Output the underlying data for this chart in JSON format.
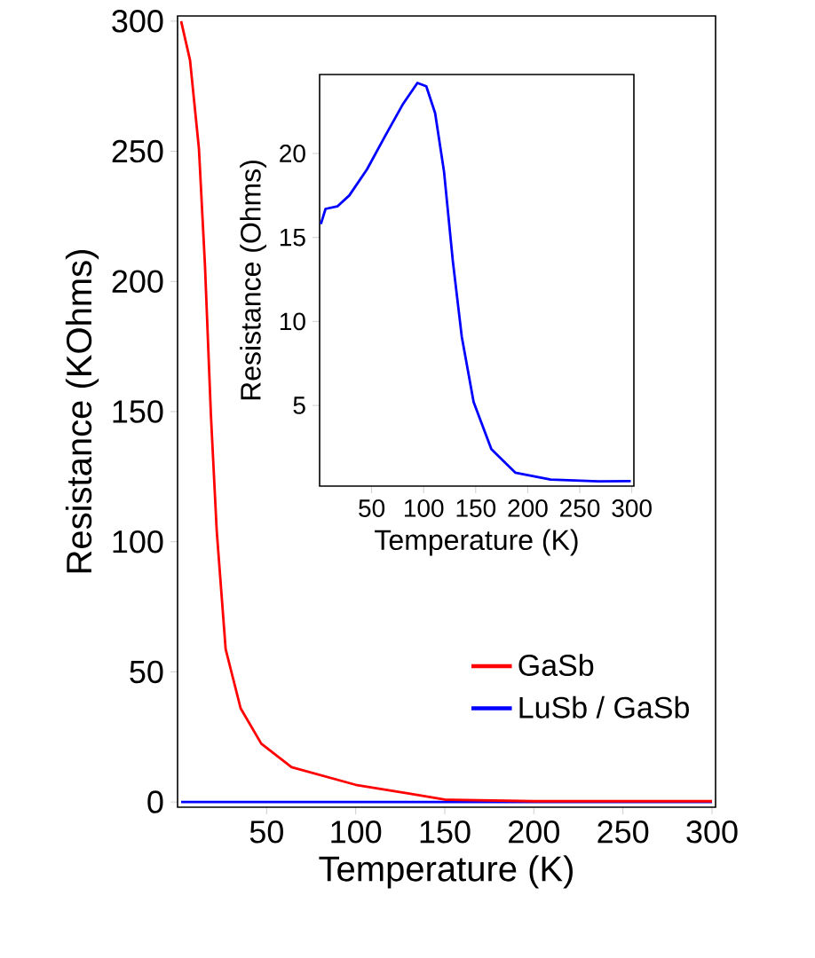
{
  "chart_data": [
    {
      "type": "line",
      "xlabel": "Temperature (K)",
      "ylabel": "Resistance (KOhms)",
      "xlim": [
        0,
        302
      ],
      "ylim": [
        -2,
        302
      ],
      "xticks": [
        50,
        100,
        150,
        200,
        250,
        300
      ],
      "yticks": [
        0,
        50,
        100,
        150,
        200,
        250,
        300
      ],
      "legend": "bottom right",
      "series": [
        {
          "name": "GaSb",
          "color": "#ff0000",
          "x": [
            2,
            7,
            12,
            15.4,
            18.7,
            22,
            27,
            35.4,
            47,
            64,
            100,
            130,
            150,
            200,
            250,
            300
          ],
          "values": [
            300,
            285,
            251,
            206,
            149,
            104,
            58.7,
            36,
            22.4,
            13.4,
            6.6,
            3.2,
            0.9,
            0.3,
            0.3,
            0.3
          ]
        },
        {
          "name": "LuSb / GaSb",
          "color": "#0000ff",
          "x": [
            2,
            50,
            100,
            150,
            200,
            250,
            300
          ],
          "values": [
            0,
            0,
            0,
            0,
            0,
            0,
            0
          ]
        }
      ]
    },
    {
      "type": "line",
      "xlabel": "Temperature (K)",
      "ylabel": "Resistance (Ohms)",
      "xlim": [
        0,
        302
      ],
      "ylim": [
        0.2,
        24.7
      ],
      "xticks": [
        50,
        100,
        150,
        200,
        250,
        300
      ],
      "yticks": [
        5,
        10,
        15,
        20
      ],
      "series": [
        {
          "color": "#0000ff",
          "x": [
            1.2,
            5.7,
            17,
            28.5,
            45.5,
            62.6,
            79.7,
            94,
            102.5,
            111,
            119.6,
            128,
            136.6,
            148,
            165,
            188,
            222,
            267.6,
            299
          ],
          "values": [
            15.8,
            16.7,
            16.85,
            17.5,
            19.05,
            21.0,
            22.9,
            24.2,
            24.0,
            22.4,
            18.9,
            13.6,
            9.1,
            5.2,
            2.4,
            1.0,
            0.59,
            0.48,
            0.5
          ]
        }
      ]
    }
  ]
}
